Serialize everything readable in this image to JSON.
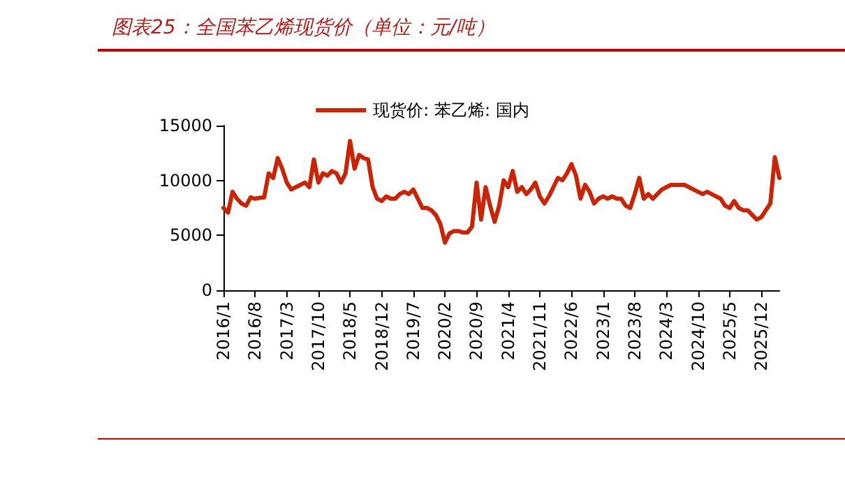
{
  "chart_data": {
    "type": "line",
    "title": "图表25：全国苯乙烯现货价（单位：元/吨）",
    "categories": [
      "2016/1",
      null,
      null,
      null,
      null,
      null,
      null,
      "2016/8",
      null,
      null,
      null,
      null,
      null,
      null,
      "2017/3",
      null,
      null,
      null,
      null,
      null,
      null,
      "2017/10",
      null,
      null,
      null,
      null,
      null,
      null,
      "2018/5",
      null,
      null,
      null,
      null,
      null,
      null,
      "2018/12",
      null,
      null,
      null,
      null,
      null,
      null,
      "2019/7",
      null,
      null,
      null,
      null,
      null,
      null,
      "2020/2",
      null,
      null,
      null,
      null,
      null,
      null,
      "2020/9",
      null,
      null,
      null,
      null,
      null,
      null,
      "2021/4",
      null,
      null,
      null,
      null,
      null,
      null,
      "2021/11",
      null,
      null,
      null,
      null,
      null,
      null,
      "2022/6",
      null,
      null,
      null,
      null,
      null,
      null,
      "2023/1",
      null,
      null,
      null,
      null,
      null,
      null,
      "2023/8",
      null,
      null,
      null,
      null,
      null,
      null,
      "2024/3",
      null,
      null,
      null,
      null,
      null,
      null,
      "2024/10",
      null,
      null,
      null,
      null,
      null,
      null,
      "2025/5",
      null,
      null,
      null,
      null,
      null,
      null,
      "2025/12",
      null,
      null,
      null,
      null
    ],
    "series": [
      {
        "name": "现货价: 苯乙烯: 国内",
        "color": "#c82506",
        "values": [
          7500,
          7070,
          8970,
          8340,
          7900,
          7700,
          8460,
          8340,
          8420,
          8460,
          10650,
          10230,
          12040,
          11070,
          9810,
          9180,
          9390,
          9600,
          9810,
          9390,
          11910,
          9810,
          10650,
          10440,
          10860,
          10650,
          9810,
          10650,
          13600,
          11070,
          12330,
          12040,
          11910,
          9390,
          8340,
          8130,
          8550,
          8340,
          8340,
          8760,
          8970,
          8760,
          9180,
          8340,
          7500,
          7500,
          7280,
          6860,
          6020,
          4340,
          5180,
          5390,
          5390,
          5260,
          5260,
          5810,
          9810,
          6440,
          9390,
          7700,
          6230,
          7700,
          10020,
          9390,
          10860,
          8970,
          9390,
          8760,
          9180,
          9810,
          8550,
          7900,
          8550,
          9390,
          10230,
          10020,
          10650,
          11490,
          10440,
          8340,
          9600,
          8970,
          7900,
          8340,
          8550,
          8340,
          8550,
          8340,
          8340,
          7700,
          7500,
          8760,
          10230,
          8340,
          8760,
          8340,
          8760,
          9180,
          9390,
          9600,
          9600,
          9600,
          9600,
          9390,
          9180,
          8970,
          8760,
          8970,
          8760,
          8550,
          8340,
          7700,
          7500,
          8130,
          7500,
          7280,
          7280,
          6860,
          6440,
          6650,
          7280,
          7900,
          12120,
          10230
        ]
      }
    ],
    "ylim": [
      0,
      15000
    ],
    "yticks": [
      0,
      5000,
      10000,
      15000
    ],
    "grid": false,
    "legend": "top",
    "marker": "none",
    "line_style": "solid"
  }
}
